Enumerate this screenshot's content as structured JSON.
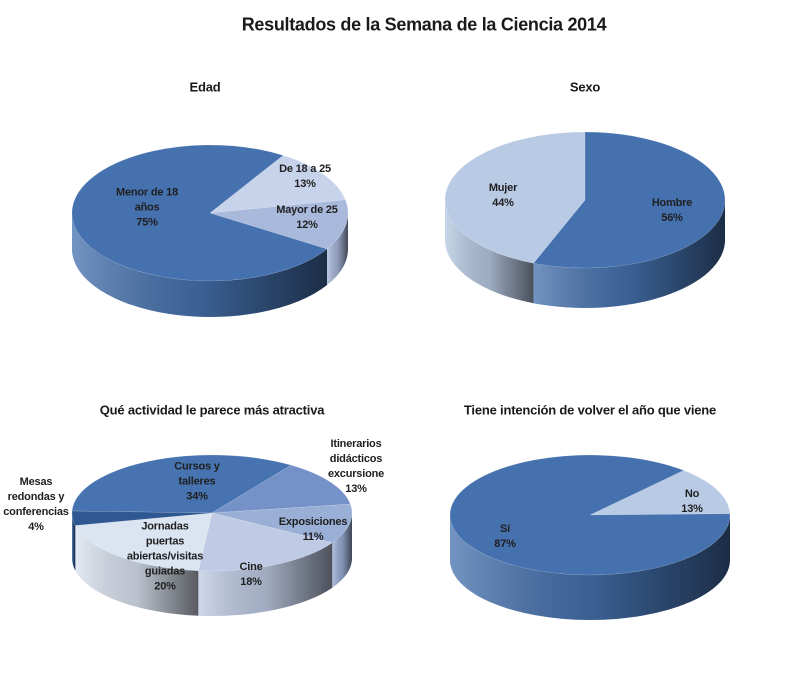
{
  "title": "Resultados de la Semana de la  Ciencia 2014",
  "chart_data": [
    {
      "type": "pie",
      "style": "3d",
      "title": "Edad",
      "slices": [
        {
          "label": "De 18 a 25",
          "value": 13,
          "pct": "13%",
          "color": "#c6d3ea"
        },
        {
          "label": "Mayor de 25",
          "value": 12,
          "pct": "12%",
          "color": "#a9b9dc"
        },
        {
          "label": "Menor de 18\naños",
          "value": 75,
          "pct": "75%",
          "color": "#4571ae"
        }
      ]
    },
    {
      "type": "pie",
      "style": "3d",
      "title": "Sexo",
      "slices": [
        {
          "label": "Hombre",
          "value": 56,
          "pct": "56%",
          "color": "#4571ae"
        },
        {
          "label": "Mujer",
          "value": 44,
          "pct": "44%",
          "color": "#b8cae4"
        }
      ]
    },
    {
      "type": "pie",
      "style": "3d",
      "title": "Qué actividad  le parece más atractiva",
      "slices": [
        {
          "label": "Cursos y\ntalleres",
          "value": 34,
          "pct": "34%",
          "color": "#4773b0"
        },
        {
          "label": "Itinerarios\ndidácticos\nexcursione",
          "value": 13,
          "pct": "13%",
          "color": "#7491c8"
        },
        {
          "label": "Exposiciones",
          "value": 11,
          "pct": "11%",
          "color": "#9aafd6"
        },
        {
          "label": "Cine",
          "value": 18,
          "pct": "18%",
          "color": "#bfcbe4"
        },
        {
          "label": "Jornadas\npuertas\nabiertas/visitas\nguiadas",
          "value": 20,
          "pct": "20%",
          "color": "#dbe4f1"
        },
        {
          "label": "Mesas\nredondas y\nconferencias",
          "value": 4,
          "pct": "4%",
          "color": "#2f5892"
        }
      ]
    },
    {
      "type": "pie",
      "style": "3d",
      "title": "Tiene intención de volver el año que viene",
      "slices": [
        {
          "label": "No",
          "value": 13,
          "pct": "13%",
          "color": "#b8cae4"
        },
        {
          "label": "Sí",
          "value": 87,
          "pct": "87%",
          "color": "#4571ae"
        }
      ]
    }
  ]
}
